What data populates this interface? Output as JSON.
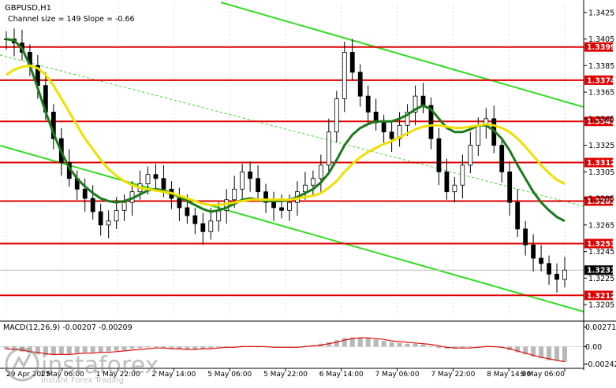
{
  "header": {
    "symbol": "GBPUSD,H1",
    "channel_info": "Channel size = 149 Slope = -0.66",
    "macd_label": "MACD(12,26,9) -0.00207 -0.00209"
  },
  "watermark": {
    "brand": "instaforex",
    "tagline": "Instant Forex Trading"
  },
  "chart_data": [
    {
      "type": "line",
      "panel": "price",
      "symbol": "GBPUSD",
      "timeframe": "H1",
      "y_ticks": [
        1.3425,
        1.3405,
        1.3385,
        1.3365,
        1.3345,
        1.3325,
        1.3305,
        1.3285,
        1.3265,
        1.3245,
        1.3225,
        1.3205
      ],
      "ylim": [
        1.3195,
        1.3432
      ],
      "current_price": 1.3231,
      "levels": [
        1.3399,
        1.3374,
        1.3343,
        1.3312,
        1.3283,
        1.3251,
        1.3212
      ],
      "x_ticks": [
        "29 Apr 2025",
        "1 May 06:00",
        "1 May 22:00",
        "2 May 14:00",
        "5 May 06:00",
        "5 May 22:00",
        "6 May 14:00",
        "7 May 06:00",
        "7 May 22:00",
        "8 May 14:00",
        "9 May 06:00"
      ],
      "series": [
        {
          "kind": "price",
          "values": [
            1.3405,
            1.3402,
            1.3395,
            1.3385,
            1.337,
            1.335,
            1.333,
            1.3312,
            1.33,
            1.3292,
            1.3285,
            1.3275,
            1.3265,
            1.3268,
            1.3276,
            1.3282,
            1.329,
            1.3296,
            1.3303,
            1.33,
            1.3292,
            1.3285,
            1.3278,
            1.3272,
            1.3266,
            1.326,
            1.3268,
            1.3276,
            1.3284,
            1.3292,
            1.3305,
            1.33,
            1.329,
            1.3282,
            1.3278,
            1.3276,
            1.3282,
            1.329,
            1.3295,
            1.33,
            1.331,
            1.3335,
            1.336,
            1.3395,
            1.338,
            1.3362,
            1.335,
            1.3342,
            1.3335,
            1.333,
            1.334,
            1.335,
            1.3362,
            1.3355,
            1.333,
            1.3305,
            1.329,
            1.3295,
            1.331,
            1.3325,
            1.334,
            1.3345,
            1.3325,
            1.3305,
            1.3282,
            1.3262,
            1.325,
            1.324,
            1.3236,
            1.3228,
            1.3224,
            1.3231
          ]
        },
        {
          "kind": "ma_fast",
          "color": "#1a7a1a",
          "values": [
            1.3405,
            1.3404,
            1.3398,
            1.3385,
            1.3368,
            1.335,
            1.3334,
            1.332,
            1.3308,
            1.33,
            1.3294,
            1.3289,
            1.3285,
            1.3283,
            1.3282,
            1.3283,
            1.3285,
            1.3288,
            1.3291,
            1.3292,
            1.3291,
            1.3289,
            1.3286,
            1.3283,
            1.328,
            1.3277,
            1.3275,
            1.3276,
            1.3278,
            1.3281,
            1.3284,
            1.3285,
            1.3284,
            1.3283,
            1.3283,
            1.3283,
            1.3284,
            1.3286,
            1.3289,
            1.3292,
            1.3297,
            1.3304,
            1.3314,
            1.3325,
            1.3333,
            1.3338,
            1.3341,
            1.3343,
            1.3343,
            1.3343,
            1.3345,
            1.3348,
            1.3352,
            1.3355,
            1.3352,
            1.3345,
            1.3338,
            1.3335,
            1.3335,
            1.3337,
            1.334,
            1.334,
            1.3336,
            1.333,
            1.3321,
            1.331,
            1.33,
            1.329,
            1.3282,
            1.3276,
            1.3271,
            1.3268
          ]
        },
        {
          "kind": "ma_slow",
          "color": "#f0e000",
          "values": [
            1.3378,
            1.3382,
            1.3384,
            1.3385,
            1.3383,
            1.3378,
            1.337,
            1.336,
            1.335,
            1.334,
            1.333,
            1.3322,
            1.3314,
            1.3307,
            1.3302,
            1.3298,
            1.3295,
            1.3293,
            1.3292,
            1.3291,
            1.329,
            1.3289,
            1.3287,
            1.3285,
            1.3283,
            1.3281,
            1.328,
            1.328,
            1.3281,
            1.3282,
            1.3283,
            1.3284,
            1.3284,
            1.3284,
            1.3284,
            1.3284,
            1.3284,
            1.3285,
            1.3286,
            1.3287,
            1.3289,
            1.3293,
            1.3298,
            1.3305,
            1.3311,
            1.3316,
            1.332,
            1.3323,
            1.3326,
            1.3328,
            1.3331,
            1.3334,
            1.3337,
            1.3339,
            1.334,
            1.334,
            1.3339,
            1.3338,
            1.3338,
            1.3339,
            1.334,
            1.3341,
            1.334,
            1.3338,
            1.3335,
            1.333,
            1.3324,
            1.3317,
            1.331,
            1.3304,
            1.3299,
            1.3296
          ]
        }
      ]
    },
    {
      "type": "bar",
      "panel": "macd",
      "title": "MACD(12,26,9) -0.00207 -0.00209",
      "y_ticks": [
        "0.00271",
        "0.00",
        "-0.00242"
      ],
      "ylim": [
        -0.0028,
        0.0031
      ],
      "series": [
        {
          "kind": "histogram",
          "values": [
            -0.0004,
            -0.0005,
            -0.0007,
            -0.0009,
            -0.0011,
            -0.0012,
            -0.0012,
            -0.0011,
            -0.001,
            -0.0009,
            -0.0008,
            -0.0008,
            -0.0008,
            -0.0007,
            -0.0006,
            -0.0005,
            -0.0003,
            -0.0002,
            -0.0001,
            -0.0001,
            -0.0002,
            -0.0003,
            -0.0004,
            -0.0004,
            -0.0004,
            -0.0003,
            -0.0002,
            -0.0001,
            0.0,
            0.0,
            0.0001,
            0.0001,
            0.0,
            -0.0001,
            -0.0001,
            -0.0001,
            -0.0001,
            0.0,
            0.0001,
            0.0002,
            0.0004,
            0.0006,
            0.0009,
            0.0012,
            0.0013,
            0.0013,
            0.0012,
            0.001,
            0.0008,
            0.0006,
            0.0005,
            0.0004,
            0.0004,
            0.0003,
            0.0001,
            -0.0002,
            -0.0003,
            -0.0003,
            -0.0002,
            -0.0001,
            0.0,
            0.0001,
            0.0,
            -0.0002,
            -0.0005,
            -0.0008,
            -0.0011,
            -0.0014,
            -0.0016,
            -0.0019,
            -0.002,
            -0.0021
          ]
        },
        {
          "kind": "signal",
          "color": "#e01010",
          "values": [
            -0.0003,
            -0.0004,
            -0.0005,
            -0.0007,
            -0.0008,
            -0.001,
            -0.0011,
            -0.0011,
            -0.0011,
            -0.001,
            -0.0009,
            -0.0009,
            -0.0008,
            -0.0008,
            -0.0007,
            -0.0006,
            -0.0005,
            -0.0004,
            -0.0003,
            -0.0002,
            -0.0002,
            -0.0003,
            -0.0003,
            -0.0004,
            -0.0004,
            -0.0003,
            -0.0003,
            -0.0002,
            -0.0001,
            -0.0001,
            0.0,
            0.0,
            0.0,
            0.0,
            -0.0001,
            -0.0001,
            -0.0001,
            -0.0001,
            0.0,
            0.0001,
            0.0002,
            0.0004,
            0.0006,
            0.0009,
            0.0011,
            0.0012,
            0.0012,
            0.0011,
            0.001,
            0.0008,
            0.0007,
            0.0006,
            0.0005,
            0.0004,
            0.0003,
            0.0001,
            -0.0001,
            -0.0002,
            -0.0002,
            -0.0002,
            -0.0001,
            0.0,
            0.0,
            -0.0001,
            -0.0003,
            -0.0006,
            -0.0009,
            -0.0012,
            -0.0015,
            -0.0017,
            -0.0019,
            -0.0021
          ]
        }
      ]
    }
  ]
}
